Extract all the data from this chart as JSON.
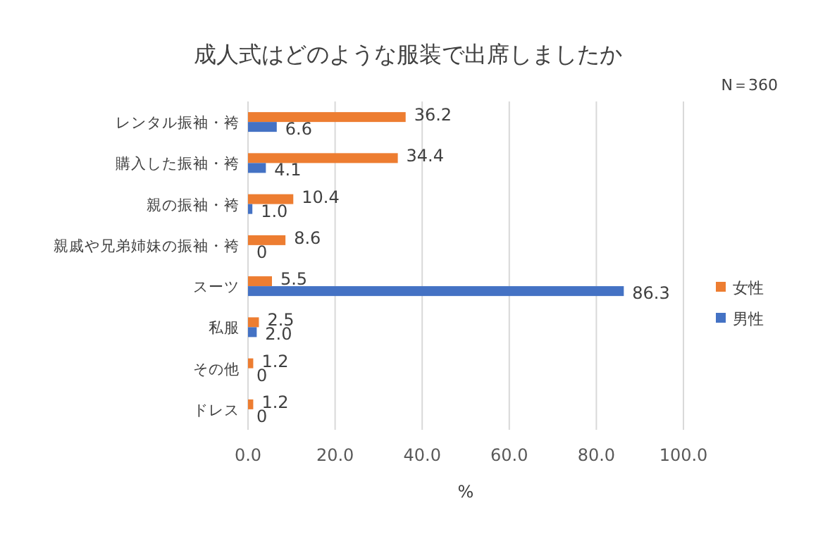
{
  "chart_data": {
    "type": "bar",
    "orientation": "horizontal",
    "title": "成人式はどのような服装で出席しましたか",
    "xlabel": "%",
    "annotations": [
      "N＝360"
    ],
    "categories": [
      "レンタル振袖・袴",
      "購入した振袖・袴",
      "親の振袖・袴",
      "親戚や兄弟姉妹の振袖・袴",
      "スーツ",
      "私服",
      "その他",
      "ドレス"
    ],
    "series": [
      {
        "name": "女性",
        "color": "#ed7d31",
        "values": [
          36.2,
          34.4,
          10.4,
          8.6,
          5.5,
          2.5,
          1.2,
          1.2
        ],
        "value_labels": [
          "36.2",
          "34.4",
          "10.4",
          "8.6",
          "5.5",
          "2.5",
          "1.2",
          "1.2"
        ]
      },
      {
        "name": "男性",
        "color": "#4472c4",
        "values": [
          6.6,
          4.1,
          1.0,
          0,
          86.3,
          2.0,
          0,
          0
        ],
        "value_labels": [
          "6.6",
          "4.1",
          "1.0",
          "0",
          "86.3",
          "2.0",
          "0",
          "0"
        ]
      }
    ],
    "xlim": [
      0,
      100
    ],
    "xticks": [
      {
        "value": 0,
        "label": "0.0"
      },
      {
        "value": 20,
        "label": "20.0"
      },
      {
        "value": 40,
        "label": "40.0"
      },
      {
        "value": 60,
        "label": "60.0"
      },
      {
        "value": 80,
        "label": "80.0"
      },
      {
        "value": 100,
        "label": "100.0"
      }
    ],
    "grid": "x",
    "legend": "right"
  }
}
